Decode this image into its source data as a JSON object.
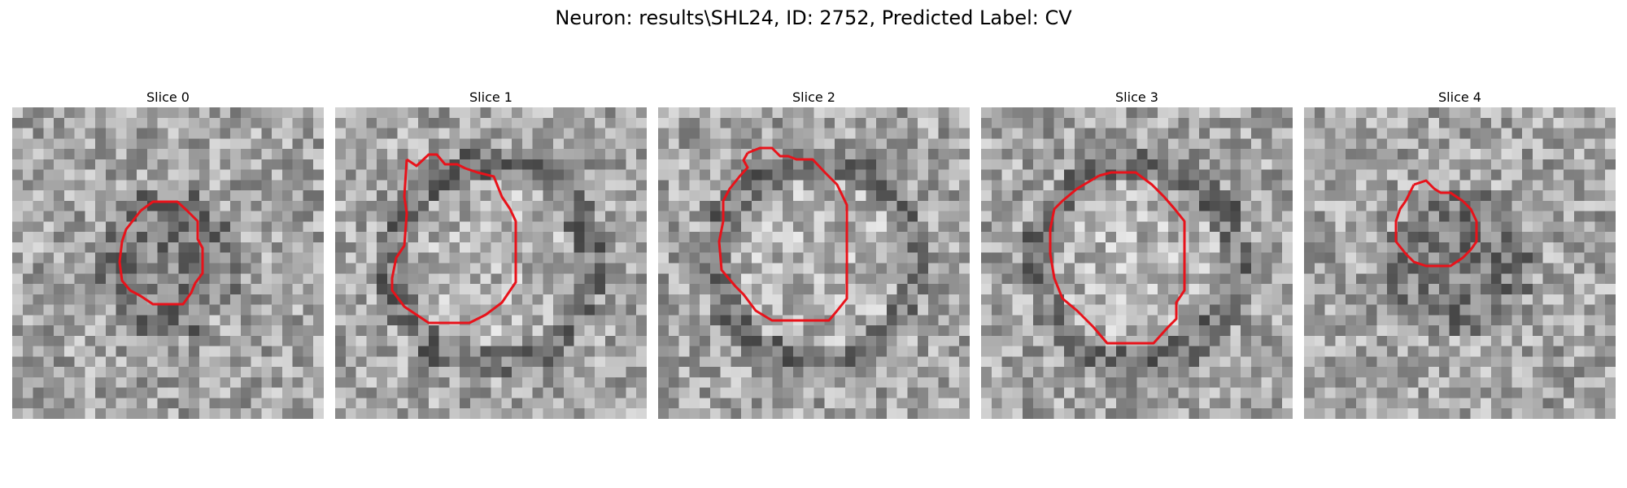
{
  "title": "Neuron: results\\SHL24, ID: 2752, Predicted Label: CV",
  "panels": [
    {
      "label": "Slice 0",
      "seed": 11,
      "center_dark": true
    },
    {
      "label": "Slice 1",
      "seed": 23,
      "center_dark": false
    },
    {
      "label": "Slice 2",
      "seed": 37,
      "center_dark": false
    },
    {
      "label": "Slice 3",
      "seed": 49,
      "center_dark": false
    },
    {
      "label": "Slice 4",
      "seed": 61,
      "center_dark": true
    }
  ],
  "contour_color": "#e8121a"
}
